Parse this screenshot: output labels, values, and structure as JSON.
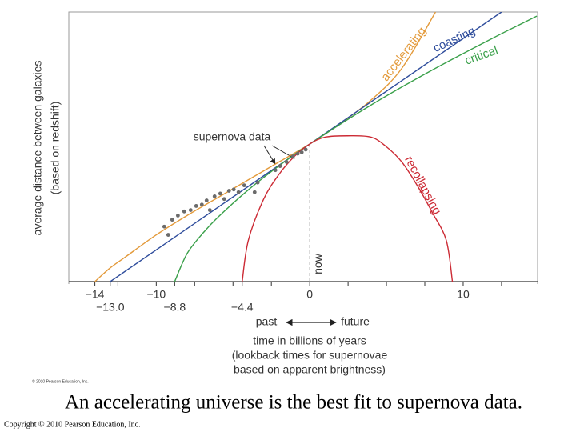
{
  "chart_data": {
    "type": "line",
    "xlabel": "time in billions of years",
    "xlabel_note_1": "(lookback times for supernovae",
    "xlabel_note_2": "based on apparent brightness)",
    "ylabel_1": "average distance between galaxies",
    "ylabel_2": "(based on redshift)",
    "xlim": [
      -15.7,
      14.85
    ],
    "ylim": [
      0,
      1.96
    ],
    "xticks": [
      {
        "value": -14,
        "label": "−14"
      },
      {
        "value": -10,
        "label": "−10"
      },
      0,
      10
    ],
    "xticks2": [
      {
        "value": -13.0,
        "label": "−13.0"
      },
      {
        "value": -8.8,
        "label": "−8.8"
      },
      {
        "value": -4.4,
        "label": "−4.4"
      }
    ],
    "xminorticks": [
      -12.5,
      -7.5,
      -5,
      -2.5,
      2.5,
      5,
      7.5,
      12.5
    ],
    "now_x": 0,
    "now_label": "now",
    "past_label": "past",
    "future_label": "future",
    "series": [
      {
        "name": "accelerating",
        "color": "#e39a3b",
        "x": [
          -14,
          -13,
          -12,
          -10,
          -8,
          -6,
          -4,
          -2,
          0,
          2,
          4,
          6,
          8.2
        ],
        "values": [
          0,
          0.1,
          0.18,
          0.34,
          0.48,
          0.61,
          0.74,
          0.87,
          1,
          1.15,
          1.32,
          1.55,
          1.96
        ]
      },
      {
        "name": "coasting",
        "color": "#2f4d9c",
        "x": [
          -13,
          0,
          12.5
        ],
        "values": [
          0,
          1,
          1.96
        ]
      },
      {
        "name": "critical",
        "color": "#3aa04a",
        "x": [
          -8.8,
          -8,
          -7,
          -6,
          -4,
          -2,
          0,
          4,
          8,
          12,
          14.8
        ],
        "values": [
          0,
          0.202,
          0.347,
          0.466,
          0.667,
          0.842,
          1,
          1.284,
          1.539,
          1.774,
          1.93
        ]
      },
      {
        "name": "recollapsing",
        "color": "#cc2b35",
        "x": [
          -4.4,
          -4,
          -3,
          -2,
          -1,
          0,
          1,
          2.45,
          4,
          5,
          6,
          7,
          8,
          8.9,
          9.3
        ],
        "values": [
          0,
          0.3,
          0.6,
          0.78,
          0.91,
          1,
          1.05,
          1.06,
          1.05,
          0.98,
          0.87,
          0.7,
          0.5,
          0.3,
          0
        ]
      }
    ],
    "scatter": {
      "name": "supernova data",
      "color": "#6b6b6b",
      "x": [
        -9.48,
        -9.22,
        -8.96,
        -8.59,
        -8.18,
        -7.76,
        -7.4,
        -7.03,
        -6.72,
        -6.51,
        -6.2,
        -5.83,
        -5.57,
        -5.26,
        -4.95,
        -4.64,
        -4.27,
        -3.59,
        -3.39,
        -2.24,
        -1.93,
        -1.51,
        -1.09,
        -0.78,
        -0.52,
        -0.26
      ],
      "values": [
        0.4,
        0.34,
        0.45,
        0.48,
        0.51,
        0.52,
        0.55,
        0.56,
        0.59,
        0.52,
        0.62,
        0.64,
        0.6,
        0.66,
        0.67,
        0.65,
        0.7,
        0.65,
        0.72,
        0.81,
        0.84,
        0.87,
        0.91,
        0.93,
        0.94,
        0.96
      ]
    },
    "figure_credit": "© 2010 Pearson Education, Inc."
  },
  "slide": {
    "caption": "An accelerating universe is the best fit to supernova data.",
    "copyright": "Copyright © 2010 Pearson Education, Inc."
  }
}
